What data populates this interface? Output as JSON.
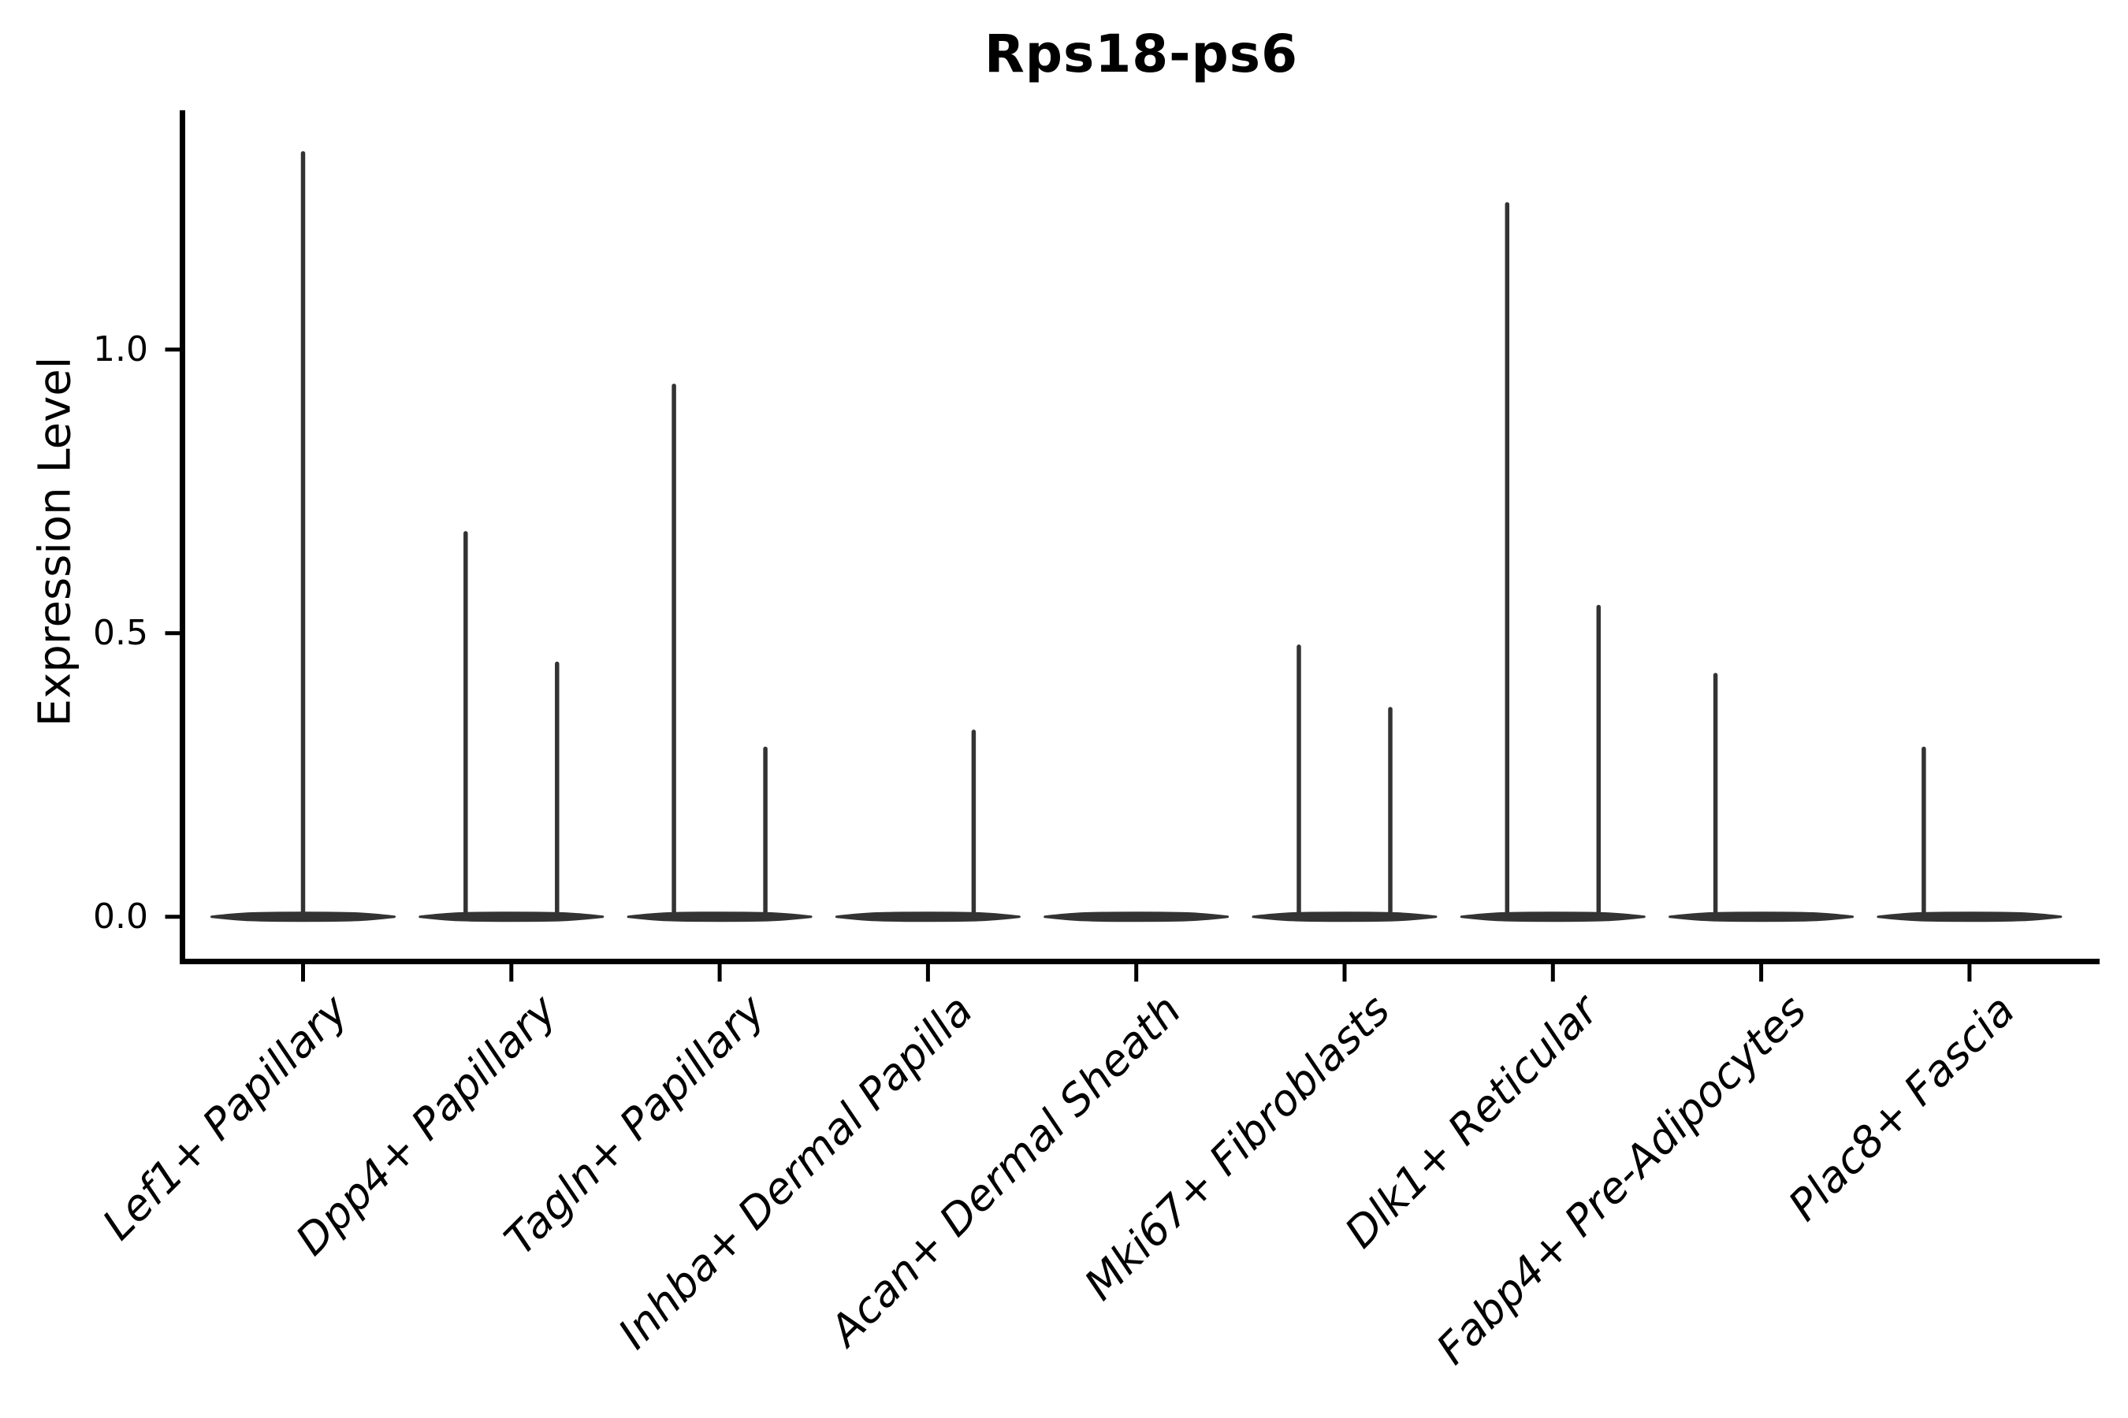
{
  "figure": {
    "background": "#ffffff",
    "text_color": "#000000",
    "violin_color": "#333333",
    "axis_color": "#000000"
  },
  "chart_data": {
    "type": "violin",
    "title": "Rps18-ps6",
    "xlabel": "",
    "ylabel": "Expression Level",
    "legend": "none",
    "grid": false,
    "ylim": [
      -0.074,
      1.422
    ],
    "yticks": [
      0.0,
      0.5,
      1.0
    ],
    "ytick_labels": [
      "0.0",
      "0.5",
      "1.0"
    ],
    "categories": [
      "Lef1+ Papillary",
      "Dpp4+ Papillary",
      "Tagln+ Papillary",
      "Inhba+ Dermal Papilla",
      "Acan+ Dermal Sheath",
      "Mki67+ Fibroblasts",
      "Dlk1+ Reticular",
      "Fabp4+ Pre-Adipocytes",
      "Plac8+ Fascia"
    ],
    "description": "Each category shows a flat violin mass at expression 0 spanning the category width, with thin needle spikes rising to the maximum expression of expressing cells; most categories contain two side-by-side sub-violins (left/right), offset about the category center.",
    "violins": [
      {
        "category": "Lef1+ Papillary",
        "spikes": [
          {
            "pos": "center",
            "max": 1.35
          }
        ]
      },
      {
        "category": "Dpp4+ Papillary",
        "spikes": [
          {
            "pos": "left",
            "max": 0.68
          },
          {
            "pos": "right",
            "max": 0.45
          }
        ]
      },
      {
        "category": "Tagln+ Papillary",
        "spikes": [
          {
            "pos": "left",
            "max": 0.94
          },
          {
            "pos": "right",
            "max": 0.3
          }
        ]
      },
      {
        "category": "Inhba+ Dermal Papilla",
        "spikes": [
          {
            "pos": "right",
            "max": 0.33
          }
        ]
      },
      {
        "category": "Acan+ Dermal Sheath",
        "spikes": []
      },
      {
        "category": "Mki67+ Fibroblasts",
        "spikes": [
          {
            "pos": "left",
            "max": 0.48
          },
          {
            "pos": "right",
            "max": 0.37
          }
        ]
      },
      {
        "category": "Dlk1+ Reticular",
        "spikes": [
          {
            "pos": "left",
            "max": 1.26
          },
          {
            "pos": "right",
            "max": 0.55
          }
        ]
      },
      {
        "category": "Fabp4+ Pre-Adipocytes",
        "spikes": [
          {
            "pos": "left",
            "max": 0.43
          }
        ]
      },
      {
        "category": "Plac8+ Fascia",
        "spikes": [
          {
            "pos": "left",
            "max": 0.3
          }
        ]
      }
    ]
  }
}
